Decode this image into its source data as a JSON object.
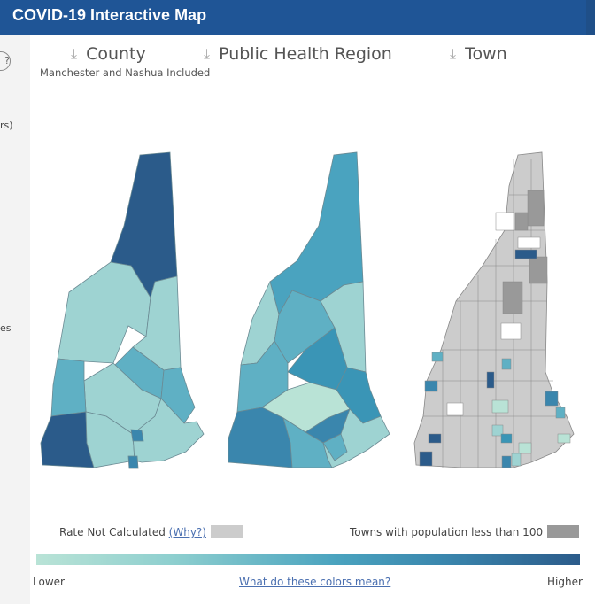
{
  "header": {
    "title": "COVID-19 Interactive Map"
  },
  "left_panel": {
    "fragments": [
      "rs)",
      "es"
    ]
  },
  "toggles": [
    {
      "label": "County",
      "icon": "download-icon"
    },
    {
      "label": "Public Health Region",
      "icon": "download-icon"
    },
    {
      "label": "Town",
      "icon": "download-icon"
    }
  ],
  "county_note": "Manchester and Nashua Included",
  "legend": {
    "rate_not_calculated": "Rate Not Calculated",
    "why_link": "(Why?)",
    "small_towns": "Towns with population less than 100",
    "low_label": "Lower",
    "high_label": "Higher",
    "colors_link": "What do these colors mean?",
    "na_color": "#cccccc",
    "small_color": "#999999"
  }
}
